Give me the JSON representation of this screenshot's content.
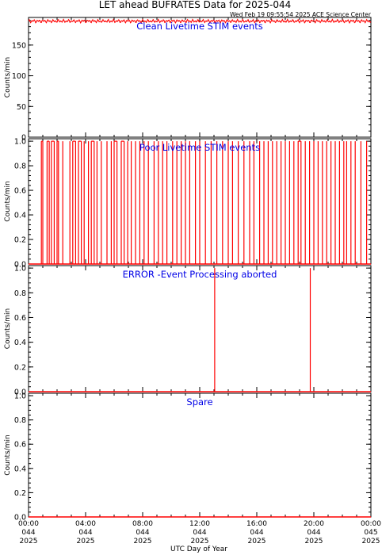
{
  "header": {
    "title": "LET ahead BUFRATES Data for 2025-044",
    "timestamp": "Wed Feb 19 09:55:54 2025 ACE Science Center"
  },
  "colors": {
    "series": "#ff0000",
    "panel_label": "#0000e6",
    "axes": "#000000"
  },
  "chart_data": [
    {
      "type": "line",
      "panel_title": "Clean Livetime STIM events",
      "ylabel": "Counts/min",
      "ylim": [
        0,
        195
      ],
      "yticks": [
        "0",
        "50",
        "100",
        "150"
      ],
      "ytick_values": [
        0,
        50,
        100,
        150
      ],
      "xlim": [
        0,
        24
      ],
      "series": [
        {
          "values_note_free": true,
          "segments": [
            [
              0,
              24,
              190
            ]
          ]
        }
      ]
    },
    {
      "type": "line",
      "panel_title": "Poor Livetime STIM events",
      "ylabel": "Counts/min",
      "ylim": [
        0,
        1.02
      ],
      "yticks": [
        "0.0",
        "0.2",
        "0.4",
        "0.6",
        "0.8",
        "1.0"
      ],
      "ytick_values": [
        0,
        0.2,
        0.4,
        0.6,
        0.8,
        1.0
      ],
      "xlim": [
        0,
        24
      ],
      "spike_hours": [
        0.9,
        1.0,
        1.3,
        1.45,
        1.6,
        1.8,
        2.0,
        2.1,
        2.4,
        2.9,
        3.1,
        3.3,
        3.5,
        3.7,
        3.9,
        4.2,
        4.4,
        4.6,
        4.8,
        5.1,
        5.5,
        5.8,
        6.0,
        6.2,
        6.5,
        6.7,
        6.95,
        7.2,
        7.5,
        7.8,
        8.1,
        8.4,
        8.8,
        9.1,
        9.4,
        9.7,
        10.1,
        10.4,
        10.7,
        11.0,
        11.3,
        11.7,
        12.0,
        12.4,
        12.8,
        13.2,
        13.6,
        14.0,
        14.3,
        14.7,
        15.1,
        15.5,
        15.8,
        16.2,
        16.5,
        16.8,
        17.1,
        17.4,
        17.7,
        18.0,
        18.3,
        18.6,
        18.9,
        19.1,
        19.4,
        19.7,
        20.0,
        20.3,
        20.6,
        20.9,
        21.2,
        21.5,
        21.8,
        22.1,
        22.3,
        22.6,
        22.9,
        23.3,
        23.7
      ],
      "spike_value": 1.0,
      "baseline": 0.0
    },
    {
      "type": "line",
      "panel_title": "ERROR -Event Processing aborted",
      "ylabel": "Counts/min",
      "ylim": [
        0,
        1.02
      ],
      "yticks": [
        "0.0",
        "0.2",
        "0.4",
        "0.6",
        "0.8",
        "1.0"
      ],
      "ytick_values": [
        0,
        0.2,
        0.4,
        0.6,
        0.8,
        1.0
      ],
      "xlim": [
        0,
        24
      ],
      "spike_hours": [
        13.05,
        19.75
      ],
      "spike_value": 1.0,
      "baseline": 0.0
    },
    {
      "type": "line",
      "panel_title": "Spare",
      "ylabel": "Counts/min",
      "ylim": [
        0,
        1.02
      ],
      "yticks": [
        "0.0",
        "0.2",
        "0.4",
        "0.6",
        "0.8",
        "1.0"
      ],
      "ytick_values": [
        0,
        0.2,
        0.4,
        0.6,
        0.8,
        1.0
      ],
      "xlim": [
        0,
        24
      ],
      "spike_hours": [],
      "spike_value": 1.0,
      "baseline": 0.0
    }
  ],
  "xaxis": {
    "label": "UTC Day of Year",
    "ticks": [
      {
        "hour": 0,
        "time": "00:00",
        "doy": "044",
        "year": "2025"
      },
      {
        "hour": 4,
        "time": "04:00",
        "doy": "044",
        "year": "2025"
      },
      {
        "hour": 8,
        "time": "08:00",
        "doy": "044",
        "year": "2025"
      },
      {
        "hour": 12,
        "time": "12:00",
        "doy": "044",
        "year": "2025"
      },
      {
        "hour": 16,
        "time": "16:00",
        "doy": "044",
        "year": "2025"
      },
      {
        "hour": 20,
        "time": "20:00",
        "doy": "044",
        "year": "2025"
      },
      {
        "hour": 24,
        "time": "00:00",
        "doy": "045",
        "year": "2025"
      }
    ]
  }
}
